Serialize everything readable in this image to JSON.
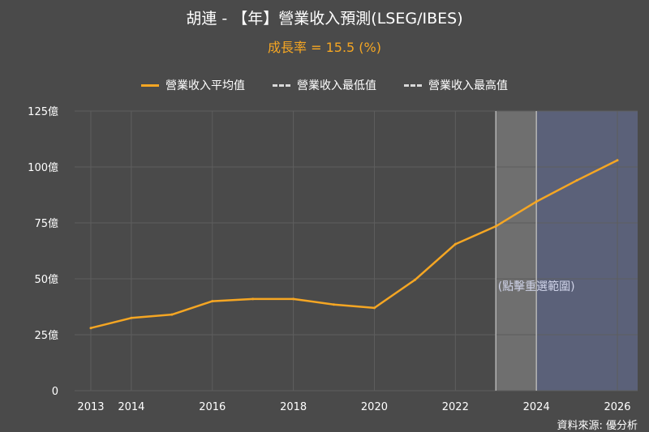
{
  "header": {
    "title": "胡連 - 【年】營業收入預測(LSEG/IBES)",
    "subtitle": "成長率 = 15.5 (%)"
  },
  "legend": [
    {
      "label": "營業收入平均值",
      "style": "solid",
      "color": "#f5a623"
    },
    {
      "label": "營業收入最低值",
      "style": "dash-dot",
      "color": "#d9d9d9"
    },
    {
      "label": "營業收入最高值",
      "style": "dash-dot",
      "color": "#d9d9d9"
    }
  ],
  "footer": {
    "source": "資料來源: 優分析"
  },
  "colors": {
    "background": "#4a4a4a",
    "line": "#f5a623",
    "grid": "#5e5e5e",
    "selected_band": "#6f6f6f",
    "forecast_band": "#5b6179"
  },
  "chart_data": {
    "type": "line",
    "title": "胡連 - 【年】營業收入預測(LSEG/IBES)",
    "subtitle": "成長率 = 15.5 (%)",
    "x": [
      2013,
      2014,
      2015,
      2016,
      2017,
      2018,
      2019,
      2020,
      2021,
      2022,
      2023,
      2024,
      2025,
      2026
    ],
    "series": [
      {
        "name": "營業收入平均值",
        "values": [
          28,
          32.5,
          34,
          40,
          41,
          41,
          38.5,
          37,
          49.5,
          65.5,
          73.5,
          84.5,
          94,
          103
        ]
      }
    ],
    "xlim": [
      2012.6,
      2026.5
    ],
    "ylim": [
      0,
      125
    ],
    "x_ticks": [
      2013,
      2014,
      2016,
      2018,
      2020,
      2022,
      2024,
      2026
    ],
    "y_ticks": [
      0,
      25,
      50,
      75,
      100,
      125
    ],
    "y_tick_labels": [
      "0",
      "25億",
      "50億",
      "75億",
      "100億",
      "125億"
    ],
    "grid": true,
    "selected_range": [
      2023,
      2024
    ],
    "forecast_range": [
      2024,
      2026.5
    ],
    "band_label": "(點擊重選範圍)",
    "legend_position": "top"
  }
}
